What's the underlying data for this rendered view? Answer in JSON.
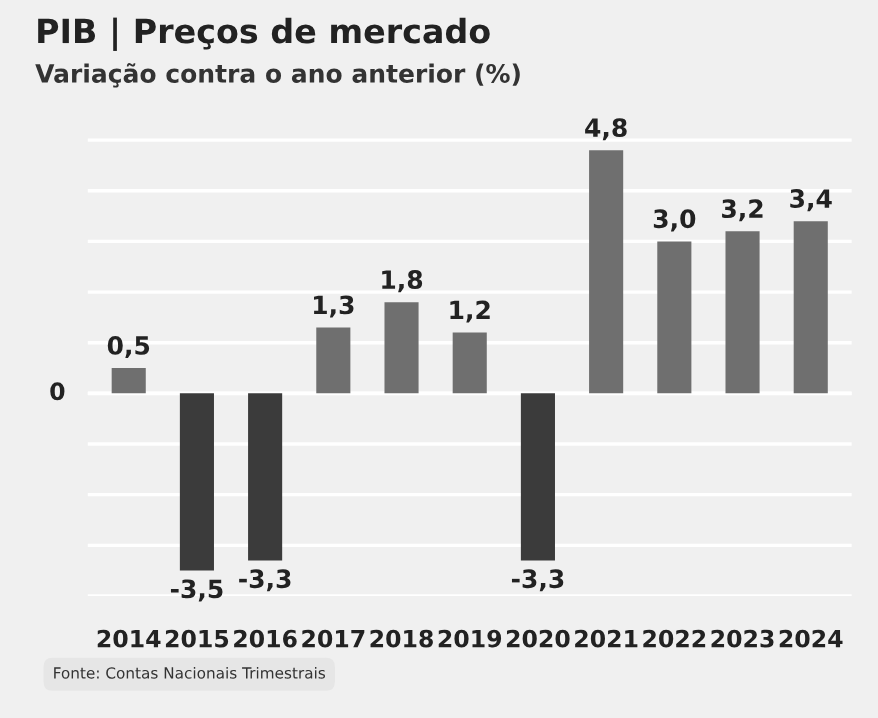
{
  "chart_data": {
    "type": "bar",
    "title": "PIB | Preços de mercado",
    "subtitle": "Variação contra o ano anterior (%)",
    "categories": [
      "2014",
      "2015",
      "2016",
      "2017",
      "2018",
      "2019",
      "2020",
      "2021",
      "2022",
      "2023",
      "2024"
    ],
    "values": [
      0.5,
      -3.5,
      -3.3,
      1.3,
      1.8,
      1.2,
      -3.3,
      4.8,
      3.0,
      3.2,
      3.4
    ],
    "colors": [
      "#6f6f6f",
      "#3b3b3b",
      "#3b3b3b",
      "#6f6f6f",
      "#6f6f6f",
      "#6f6f6f",
      "#3b3b3b",
      "#6f6f6f",
      "#6f6f6f",
      "#6f6f6f",
      "#6f6f6f"
    ],
    "value_labels": [
      "0,5",
      "-3,5",
      "-3,3",
      "1,3",
      "1,8",
      "1,2",
      "-3,3",
      "4,8",
      "3,0",
      "3,2",
      "3,4"
    ],
    "ref_lines": [
      {
        "axis": "y",
        "value": 0,
        "label": "0",
        "color": "#ffffff"
      }
    ],
    "yticks": [
      {
        "value": -4,
        "label": null
      },
      {
        "value": -3,
        "label": null
      },
      {
        "value": -2,
        "label": null
      },
      {
        "value": -1,
        "label": null
      },
      {
        "value": 0,
        "label": null
      },
      {
        "value": 1,
        "label": null
      },
      {
        "value": 2,
        "label": null
      },
      {
        "value": 3,
        "label": null
      },
      {
        "value": 4,
        "label": null
      },
      {
        "value": 5,
        "label": null
      }
    ],
    "grid": "y",
    "annotations": [
      "Fonte: Contas Nacionais Trimestrais"
    ]
  }
}
